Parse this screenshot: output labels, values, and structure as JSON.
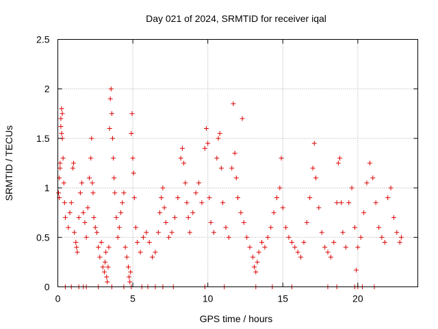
{
  "chart_data": {
    "type": "scatter",
    "title": "Day 021 of 2024, SRMTID for receiver iqal",
    "xlabel": "GPS time / hours",
    "ylabel": "SRMTID / TECUs",
    "xlim": [
      0,
      24
    ],
    "ylim": [
      0,
      2.5
    ],
    "x_ticks": [
      0,
      5,
      10,
      15,
      20
    ],
    "x_tick_labels": [
      "0",
      "5",
      "10",
      "15",
      "20"
    ],
    "y_ticks": [
      0,
      0.5,
      1,
      1.5,
      2,
      2.5
    ],
    "y_tick_labels": [
      "0",
      "0.5",
      "1",
      "1.5",
      "2",
      "2.5"
    ],
    "grid": true,
    "marker": "plus",
    "color": "#dd0000",
    "series": [
      {
        "name": "SRMTID",
        "points": [
          [
            0.05,
            0.95
          ],
          [
            0.1,
            1.1
          ],
          [
            0.15,
            1.25
          ],
          [
            0.2,
            1.7
          ],
          [
            0.25,
            1.8
          ],
          [
            0.3,
            1.5
          ],
          [
            0.35,
            1.3
          ],
          [
            0.4,
            1.05
          ],
          [
            0.45,
            0.85
          ],
          [
            0.5,
            0.7
          ],
          [
            0.2,
            1.62
          ],
          [
            0.25,
            1.55
          ],
          [
            0.3,
            1.75
          ],
          [
            0.1,
            0.9
          ],
          [
            0.15,
            1.2
          ],
          [
            0.7,
            0.6
          ],
          [
            0.8,
            0.75
          ],
          [
            0.9,
            0.85
          ],
          [
            1.0,
            1.2
          ],
          [
            1.05,
            1.25
          ],
          [
            1.1,
            0.55
          ],
          [
            1.2,
            0.45
          ],
          [
            1.25,
            0.4
          ],
          [
            1.3,
            0.35
          ],
          [
            1.4,
            0.7
          ],
          [
            1.5,
            0.95
          ],
          [
            1.6,
            1.05
          ],
          [
            1.7,
            0.75
          ],
          [
            1.8,
            0.65
          ],
          [
            1.9,
            0.5
          ],
          [
            2.0,
            0.8
          ],
          [
            2.1,
            1.1
          ],
          [
            2.2,
            1.3
          ],
          [
            2.25,
            1.5
          ],
          [
            2.3,
            1.05
          ],
          [
            2.35,
            0.95
          ],
          [
            2.4,
            0.7
          ],
          [
            2.5,
            0.6
          ],
          [
            2.6,
            0.55
          ],
          [
            2.7,
            0.4
          ],
          [
            2.8,
            0.3
          ],
          [
            2.9,
            0.45
          ],
          [
            3.0,
            0.2
          ],
          [
            3.1,
            0.15
          ],
          [
            3.15,
            0.25
          ],
          [
            3.2,
            0.35
          ],
          [
            3.25,
            0.1
          ],
          [
            3.3,
            0.05
          ],
          [
            3.35,
            0.2
          ],
          [
            3.4,
            0.4
          ],
          [
            3.45,
            1.6
          ],
          [
            3.5,
            1.9
          ],
          [
            3.55,
            2.0
          ],
          [
            3.6,
            1.75
          ],
          [
            3.65,
            1.5
          ],
          [
            3.7,
            1.3
          ],
          [
            3.75,
            1.1
          ],
          [
            3.8,
            0.95
          ],
          [
            3.9,
            0.7
          ],
          [
            4.0,
            0.5
          ],
          [
            4.1,
            0.6
          ],
          [
            4.2,
            0.75
          ],
          [
            4.3,
            0.85
          ],
          [
            4.4,
            0.95
          ],
          [
            4.5,
            0.4
          ],
          [
            4.6,
            0.3
          ],
          [
            4.7,
            0.2
          ],
          [
            4.75,
            0.1
          ],
          [
            4.8,
            0.05
          ],
          [
            4.85,
            0.15
          ],
          [
            4.9,
            1.55
          ],
          [
            4.95,
            1.75
          ],
          [
            5.0,
            1.3
          ],
          [
            5.05,
            1.15
          ],
          [
            5.1,
            0.9
          ],
          [
            5.2,
            0.6
          ],
          [
            5.3,
            0.45
          ],
          [
            5.5,
            0.35
          ],
          [
            5.7,
            0.5
          ],
          [
            5.9,
            0.55
          ],
          [
            6.1,
            0.45
          ],
          [
            6.3,
            0.3
          ],
          [
            6.5,
            0.35
          ],
          [
            6.7,
            0.55
          ],
          [
            6.8,
            0.75
          ],
          [
            6.9,
            0.9
          ],
          [
            7.0,
            1.0
          ],
          [
            7.1,
            0.8
          ],
          [
            7.2,
            0.65
          ],
          [
            7.4,
            0.5
          ],
          [
            7.6,
            0.55
          ],
          [
            7.8,
            0.7
          ],
          [
            8.0,
            0.9
          ],
          [
            8.2,
            1.3
          ],
          [
            8.3,
            1.4
          ],
          [
            8.4,
            1.25
          ],
          [
            8.5,
            1.05
          ],
          [
            8.6,
            0.85
          ],
          [
            8.7,
            0.7
          ],
          [
            8.8,
            0.55
          ],
          [
            9.0,
            0.75
          ],
          [
            9.2,
            0.95
          ],
          [
            9.4,
            1.05
          ],
          [
            9.6,
            0.85
          ],
          [
            9.8,
            1.4
          ],
          [
            9.9,
            1.6
          ],
          [
            10.0,
            1.45
          ],
          [
            10.1,
            0.9
          ],
          [
            10.2,
            0.65
          ],
          [
            10.4,
            0.55
          ],
          [
            10.6,
            1.3
          ],
          [
            10.7,
            1.5
          ],
          [
            10.8,
            1.55
          ],
          [
            10.9,
            1.2
          ],
          [
            11.0,
            0.85
          ],
          [
            11.2,
            0.6
          ],
          [
            11.4,
            0.5
          ],
          [
            11.6,
            1.2
          ],
          [
            11.7,
            1.85
          ],
          [
            11.8,
            1.35
          ],
          [
            11.9,
            1.1
          ],
          [
            12.0,
            0.9
          ],
          [
            12.2,
            0.75
          ],
          [
            12.3,
            1.7
          ],
          [
            12.4,
            0.65
          ],
          [
            12.6,
            0.5
          ],
          [
            12.8,
            0.4
          ],
          [
            13.0,
            0.3
          ],
          [
            13.1,
            0.2
          ],
          [
            13.2,
            0.15
          ],
          [
            13.3,
            0.25
          ],
          [
            13.4,
            0.35
          ],
          [
            13.6,
            0.45
          ],
          [
            13.8,
            0.4
          ],
          [
            14.0,
            0.5
          ],
          [
            14.2,
            0.6
          ],
          [
            14.4,
            0.75
          ],
          [
            14.6,
            0.9
          ],
          [
            14.8,
            1.0
          ],
          [
            14.9,
            1.3
          ],
          [
            15.0,
            0.8
          ],
          [
            15.2,
            0.6
          ],
          [
            15.4,
            0.5
          ],
          [
            15.6,
            0.45
          ],
          [
            15.8,
            0.4
          ],
          [
            16.0,
            0.35
          ],
          [
            16.2,
            0.3
          ],
          [
            16.4,
            0.45
          ],
          [
            16.6,
            0.65
          ],
          [
            16.8,
            0.9
          ],
          [
            17.0,
            1.2
          ],
          [
            17.1,
            1.45
          ],
          [
            17.2,
            1.1
          ],
          [
            17.4,
            0.8
          ],
          [
            17.6,
            0.55
          ],
          [
            17.8,
            0.4
          ],
          [
            18.0,
            0.35
          ],
          [
            18.2,
            0.3
          ],
          [
            18.4,
            0.45
          ],
          [
            18.6,
            0.85
          ],
          [
            18.7,
            1.25
          ],
          [
            18.8,
            1.3
          ],
          [
            18.9,
            0.85
          ],
          [
            19.0,
            0.55
          ],
          [
            19.2,
            0.4
          ],
          [
            19.4,
            0.85
          ],
          [
            19.6,
            1.0
          ],
          [
            19.8,
            0.6
          ],
          [
            20.0,
            0.4
          ],
          [
            20.2,
            0.5
          ],
          [
            20.4,
            0.75
          ],
          [
            20.6,
            1.05
          ],
          [
            20.8,
            1.25
          ],
          [
            21.0,
            1.1
          ],
          [
            21.2,
            0.85
          ],
          [
            21.4,
            0.6
          ],
          [
            21.6,
            0.5
          ],
          [
            21.8,
            0.45
          ],
          [
            22.0,
            0.9
          ],
          [
            22.2,
            1.0
          ],
          [
            22.4,
            0.7
          ],
          [
            22.6,
            0.55
          ],
          [
            22.8,
            0.45
          ],
          [
            22.9,
            0.5
          ],
          [
            19.9,
            0.17
          ],
          [
            0.5,
            0
          ],
          [
            0.9,
            0
          ],
          [
            1.4,
            0
          ],
          [
            1.7,
            0
          ],
          [
            1.9,
            0
          ],
          [
            2.7,
            0
          ],
          [
            3.6,
            0
          ],
          [
            4.4,
            0
          ],
          [
            4.9,
            0
          ],
          [
            5.6,
            0
          ],
          [
            6.0,
            0
          ],
          [
            6.5,
            0
          ],
          [
            7.0,
            0
          ],
          [
            7.7,
            0
          ],
          [
            9.8,
            0
          ],
          [
            11.1,
            0
          ],
          [
            13.2,
            0
          ],
          [
            14.3,
            0
          ],
          [
            15.6,
            0
          ],
          [
            18.0,
            0
          ],
          [
            18.6,
            0
          ],
          [
            19.8,
            0
          ],
          [
            20.0,
            0
          ],
          [
            20.3,
            0
          ],
          [
            21.1,
            0
          ]
        ]
      }
    ]
  }
}
